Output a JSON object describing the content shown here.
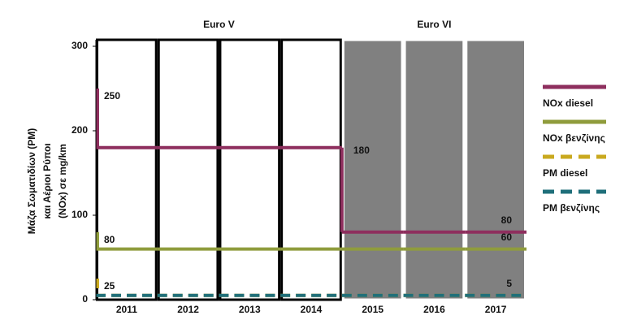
{
  "chart_data": {
    "type": "step",
    "y_label": [
      "Μάζα Σωματιδίων (PM)",
      "και Αέριοι Ρύποι",
      "(NOx) σε mg/km"
    ],
    "categories": [
      "2011",
      "2012",
      "2013",
      "2014",
      "2015",
      "2016",
      "2017"
    ],
    "groups": [
      {
        "name": "Euro V",
        "start": 0,
        "end": 3,
        "fill": "#ffffff",
        "border": "#000000"
      },
      {
        "name": "Euro VI",
        "start": 4,
        "end": 6,
        "fill": "#808080",
        "border": "#ffffff"
      }
    ],
    "ylim": [
      0,
      300
    ],
    "yticks": [
      0,
      100,
      200,
      300
    ],
    "series": [
      {
        "name": "NOx diesel",
        "color": "#8e2f5e",
        "dashed": false,
        "data_labels": true,
        "start_value": 250,
        "values": [
          180,
          180,
          180,
          180,
          80,
          80,
          80
        ]
      },
      {
        "name": "NOx βενζίνης",
        "color": "#8f9c3c",
        "dashed": false,
        "data_labels": true,
        "start_value": 80,
        "values": [
          60,
          60,
          60,
          60,
          60,
          60,
          60
        ]
      },
      {
        "name": "PM diesel",
        "color": "#c9a91f",
        "dashed": true,
        "data_labels": true,
        "start_value": 25,
        "values": [
          5,
          5,
          5,
          5,
          5,
          5,
          5
        ]
      },
      {
        "name": "PM βενζίνης",
        "color": "#1f6f7a",
        "dashed": true,
        "data_labels": false,
        "values": [
          5,
          5,
          5,
          5,
          5,
          5,
          5
        ]
      }
    ]
  }
}
